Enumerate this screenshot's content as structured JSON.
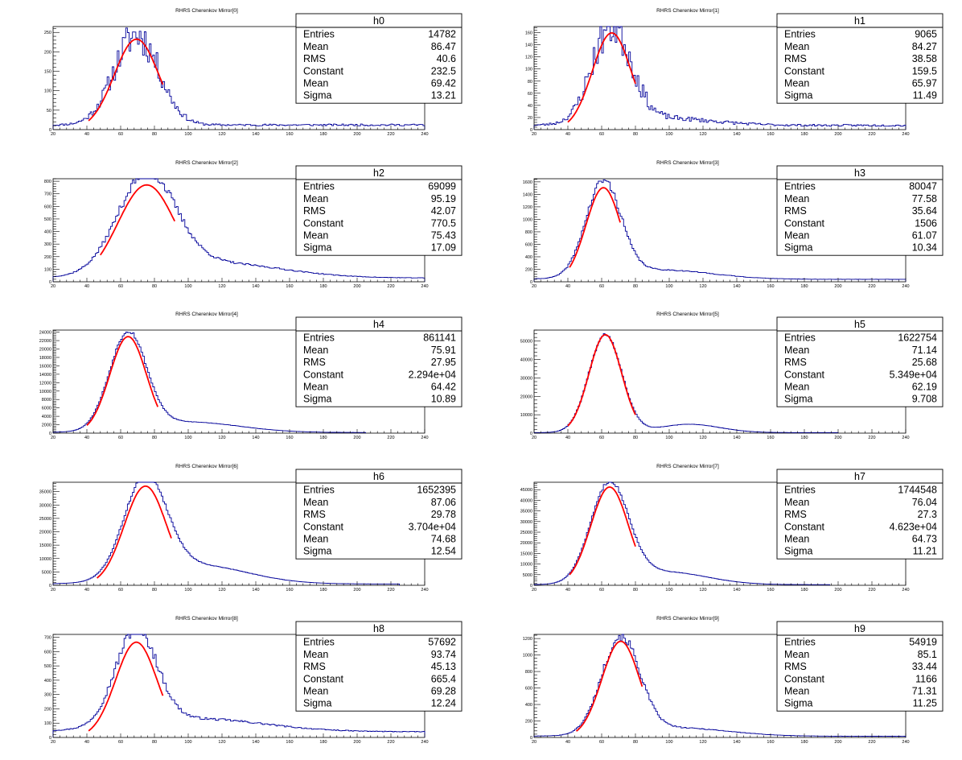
{
  "chart_data": [
    {
      "type": "histogram",
      "title": "RHRS Cherenkov Mirror[0]",
      "stats": {
        "name": "h0",
        "rows": [
          [
            "Entries",
            "14782"
          ],
          [
            "Mean",
            "86.47"
          ],
          [
            "RMS",
            "40.6"
          ],
          [
            "Constant",
            "232.5"
          ],
          [
            "Mean",
            "69.42"
          ],
          [
            "Sigma",
            "13.21"
          ]
        ]
      },
      "xlim": [
        20,
        240
      ],
      "ylim": [
        0,
        265
      ],
      "xticks": [
        20,
        40,
        60,
        80,
        100,
        120,
        140,
        160,
        180,
        200,
        220,
        240
      ],
      "yticks": [
        0,
        50,
        100,
        150,
        200,
        250
      ],
      "fit": {
        "constant": 232.5,
        "mean": 69.42,
        "sigma": 13.21,
        "range": [
          41,
          85
        ]
      },
      "bins": {
        "xmin": 20,
        "xmax": 240,
        "width": 1.0,
        "baseline": 12,
        "tail_amp": 0,
        "tail_mean": 100,
        "tail_sigma": 40,
        "noise": 0.2,
        "seed": 11
      }
    },
    {
      "type": "histogram",
      "title": "RHRS Cherenkov Mirror[1]",
      "stats": {
        "name": "h1",
        "rows": [
          [
            "Entries",
            "9065"
          ],
          [
            "Mean",
            "84.27"
          ],
          [
            "RMS",
            "38.58"
          ],
          [
            "Constant",
            "159.5"
          ],
          [
            "Mean",
            "65.97"
          ],
          [
            "Sigma",
            "11.49"
          ]
        ]
      },
      "xlim": [
        20,
        240
      ],
      "ylim": [
        0,
        170
      ],
      "xticks": [
        20,
        40,
        60,
        80,
        100,
        120,
        140,
        160,
        180,
        200,
        220,
        240
      ],
      "yticks": [
        0,
        20,
        40,
        60,
        80,
        100,
        120,
        140,
        160
      ],
      "fit": {
        "constant": 159.5,
        "mean": 65.97,
        "sigma": 11.49,
        "range": [
          40,
          80
        ]
      },
      "bins": {
        "xmin": 20,
        "xmax": 240,
        "width": 1.0,
        "baseline": 7,
        "tail_amp": 12,
        "tail_mean": 95,
        "tail_sigma": 30,
        "noise": 0.22,
        "seed": 23
      }
    },
    {
      "type": "histogram",
      "title": "RHRS Cherenkov Mirror[2]",
      "stats": {
        "name": "h2",
        "rows": [
          [
            "Entries",
            "69099"
          ],
          [
            "Mean",
            "95.19"
          ],
          [
            "RMS",
            "42.07"
          ],
          [
            "Constant",
            "770.5"
          ],
          [
            "Mean",
            "75.43"
          ],
          [
            "Sigma",
            "17.09"
          ]
        ]
      },
      "xlim": [
        20,
        240
      ],
      "ylim": [
        0,
        820
      ],
      "xticks": [
        20,
        40,
        60,
        80,
        100,
        120,
        140,
        160,
        180,
        200,
        220,
        240
      ],
      "yticks": [
        0,
        100,
        200,
        300,
        400,
        500,
        600,
        700,
        800
      ],
      "fit": {
        "constant": 770.5,
        "mean": 75.43,
        "sigma": 17.09,
        "range": [
          48,
          92
        ]
      },
      "bins": {
        "xmin": 20,
        "xmax": 240,
        "width": 1.0,
        "baseline": 30,
        "tail_amp": 120,
        "tail_mean": 115,
        "tail_sigma": 40,
        "noise": 0.05,
        "seed": 37
      }
    },
    {
      "type": "histogram",
      "title": "RHRS Cherenkov Mirror[3]",
      "stats": {
        "name": "h3",
        "rows": [
          [
            "Entries",
            "80047"
          ],
          [
            "Mean",
            "77.58"
          ],
          [
            "RMS",
            "35.64"
          ],
          [
            "Constant",
            "1506"
          ],
          [
            "Mean",
            "61.07"
          ],
          [
            "Sigma",
            "10.34"
          ]
        ]
      },
      "xlim": [
        20,
        240
      ],
      "ylim": [
        0,
        1650
      ],
      "xticks": [
        20,
        40,
        60,
        80,
        100,
        120,
        140,
        160,
        180,
        200,
        220,
        240
      ],
      "yticks": [
        0,
        200,
        400,
        600,
        800,
        1000,
        1200,
        1400,
        1600
      ],
      "fit": {
        "constant": 1506,
        "mean": 61.07,
        "sigma": 10.34,
        "range": [
          41,
          71
        ]
      },
      "bins": {
        "xmin": 20,
        "xmax": 240,
        "width": 1.0,
        "baseline": 40,
        "tail_amp": 150,
        "tail_mean": 95,
        "tail_sigma": 30,
        "noise": 0.04,
        "seed": 41
      }
    },
    {
      "type": "histogram",
      "title": "RHRS Cherenkov Mirror[4]",
      "stats": {
        "name": "h4",
        "rows": [
          [
            "Entries",
            "861141"
          ],
          [
            "Mean",
            "75.91"
          ],
          [
            "RMS",
            "27.95"
          ],
          [
            "Constant",
            "2.294e+04"
          ],
          [
            "Mean",
            "64.42"
          ],
          [
            "Sigma",
            "10.89"
          ]
        ]
      },
      "xlim": [
        20,
        240
      ],
      "ylim": [
        0,
        24500
      ],
      "xticks": [
        20,
        40,
        60,
        80,
        100,
        120,
        140,
        160,
        180,
        200,
        220,
        240
      ],
      "yticks": [
        0,
        2000,
        4000,
        6000,
        8000,
        10000,
        12000,
        14000,
        16000,
        18000,
        20000,
        22000,
        24000
      ],
      "fit": {
        "constant": 22940,
        "mean": 64.42,
        "sigma": 10.89,
        "range": [
          40,
          82
        ]
      },
      "bins": {
        "xmin": 20,
        "xmax": 205,
        "width": 1.0,
        "baseline": 150,
        "tail_amp": 2500,
        "tail_mean": 100,
        "tail_sigma": 30,
        "noise": 0.02,
        "seed": 53
      }
    },
    {
      "type": "histogram",
      "title": "RHRS Cherenkov Mirror[5]",
      "stats": {
        "name": "h5",
        "rows": [
          [
            "Entries",
            "1622754"
          ],
          [
            "Mean",
            "71.14"
          ],
          [
            "RMS",
            "25.68"
          ],
          [
            "Constant",
            "5.349e+04"
          ],
          [
            "Mean",
            "62.19"
          ],
          [
            "Sigma",
            "9.708"
          ]
        ]
      },
      "xlim": [
        20,
        240
      ],
      "ylim": [
        0,
        56000
      ],
      "xticks": [
        20,
        40,
        60,
        80,
        100,
        120,
        140,
        160,
        180,
        200,
        220,
        240
      ],
      "yticks": [
        0,
        10000,
        20000,
        30000,
        40000,
        50000
      ],
      "fit": {
        "constant": 53490,
        "mean": 62.19,
        "sigma": 9.708,
        "range": [
          40,
          80
        ]
      },
      "bins": {
        "xmin": 20,
        "xmax": 200,
        "width": 1.0,
        "baseline": 300,
        "tail_amp": 4500,
        "tail_mean": 112,
        "tail_sigma": 18,
        "noise": 0.015,
        "seed": 67
      }
    },
    {
      "type": "histogram",
      "title": "RHRS Cherenkov Mirror[6]",
      "stats": {
        "name": "h6",
        "rows": [
          [
            "Entries",
            "1652395"
          ],
          [
            "Mean",
            "87.06"
          ],
          [
            "RMS",
            "29.78"
          ],
          [
            "Constant",
            "3.704e+04"
          ],
          [
            "Mean",
            "74.68"
          ],
          [
            "Sigma",
            "12.54"
          ]
        ]
      },
      "xlim": [
        20,
        240
      ],
      "ylim": [
        0,
        38500
      ],
      "xticks": [
        20,
        40,
        60,
        80,
        100,
        120,
        140,
        160,
        180,
        200,
        220,
        240
      ],
      "yticks": [
        0,
        5000,
        10000,
        15000,
        20000,
        25000,
        30000,
        35000
      ],
      "fit": {
        "constant": 37040,
        "mean": 74.68,
        "sigma": 12.54,
        "range": [
          46,
          90
        ]
      },
      "bins": {
        "xmin": 20,
        "xmax": 225,
        "width": 1.0,
        "baseline": 500,
        "tail_amp": 7000,
        "tail_mean": 105,
        "tail_sigma": 30,
        "noise": 0.015,
        "seed": 71
      }
    },
    {
      "type": "histogram",
      "title": "RHRS Cherenkov Mirror[7]",
      "stats": {
        "name": "h7",
        "rows": [
          [
            "Entries",
            "1744548"
          ],
          [
            "Mean",
            "76.04"
          ],
          [
            "RMS",
            "27.3"
          ],
          [
            "Constant",
            "4.623e+04"
          ],
          [
            "Mean",
            "64.73"
          ],
          [
            "Sigma",
            "11.21"
          ]
        ]
      },
      "xlim": [
        20,
        240
      ],
      "ylim": [
        0,
        48500
      ],
      "xticks": [
        20,
        40,
        60,
        80,
        100,
        120,
        140,
        160,
        180,
        200,
        220,
        240
      ],
      "yticks": [
        0,
        5000,
        10000,
        15000,
        20000,
        25000,
        30000,
        35000,
        40000,
        45000
      ],
      "fit": {
        "constant": 46230,
        "mean": 64.73,
        "sigma": 11.21,
        "range": [
          41,
          80
        ]
      },
      "bins": {
        "xmin": 20,
        "xmax": 195,
        "width": 1.0,
        "baseline": 300,
        "tail_amp": 6000,
        "tail_mean": 97,
        "tail_sigma": 25,
        "noise": 0.015,
        "seed": 83
      }
    },
    {
      "type": "histogram",
      "title": "RHRS Cherenkov Mirror[8]",
      "stats": {
        "name": "h8",
        "rows": [
          [
            "Entries",
            "57692"
          ],
          [
            "Mean",
            "93.74"
          ],
          [
            "RMS",
            "45.13"
          ],
          [
            "Constant",
            "665.4"
          ],
          [
            "Mean",
            "69.28"
          ],
          [
            "Sigma",
            "12.24"
          ]
        ]
      },
      "xlim": [
        20,
        240
      ],
      "ylim": [
        0,
        720
      ],
      "xticks": [
        20,
        40,
        60,
        80,
        100,
        120,
        140,
        160,
        180,
        200,
        220,
        240
      ],
      "yticks": [
        0,
        100,
        200,
        300,
        400,
        500,
        600,
        700
      ],
      "fit": {
        "constant": 665.4,
        "mean": 69.28,
        "sigma": 12.24,
        "range": [
          41,
          85
        ]
      },
      "bins": {
        "xmin": 20,
        "xmax": 240,
        "width": 1.0,
        "baseline": 40,
        "tail_amp": 90,
        "tail_mean": 105,
        "tail_sigma": 40,
        "noise": 0.06,
        "seed": 97
      }
    },
    {
      "type": "histogram",
      "title": "RHRS Cherenkov Mirror[9]",
      "stats": {
        "name": "h9",
        "rows": [
          [
            "Entries",
            "54919"
          ],
          [
            "Mean",
            "85.1"
          ],
          [
            "RMS",
            "33.44"
          ],
          [
            "Constant",
            "1166"
          ],
          [
            "Mean",
            "71.31"
          ],
          [
            "Sigma",
            "11.25"
          ]
        ]
      },
      "xlim": [
        20,
        240
      ],
      "ylim": [
        0,
        1250
      ],
      "xticks": [
        20,
        40,
        60,
        80,
        100,
        120,
        140,
        160,
        180,
        200,
        220,
        240
      ],
      "yticks": [
        0,
        200,
        400,
        600,
        800,
        1000,
        1200
      ],
      "fit": {
        "constant": 1166,
        "mean": 71.31,
        "sigma": 11.25,
        "range": [
          45,
          84
        ]
      },
      "bins": {
        "xmin": 20,
        "xmax": 240,
        "width": 1.0,
        "baseline": 15,
        "tail_amp": 100,
        "tail_mean": 105,
        "tail_sigma": 30,
        "noise": 0.05,
        "seed": 101
      }
    }
  ],
  "colors": {
    "histogram": "#000099",
    "fit": "#ff0000",
    "axis": "#000000",
    "background": "#ffffff"
  }
}
